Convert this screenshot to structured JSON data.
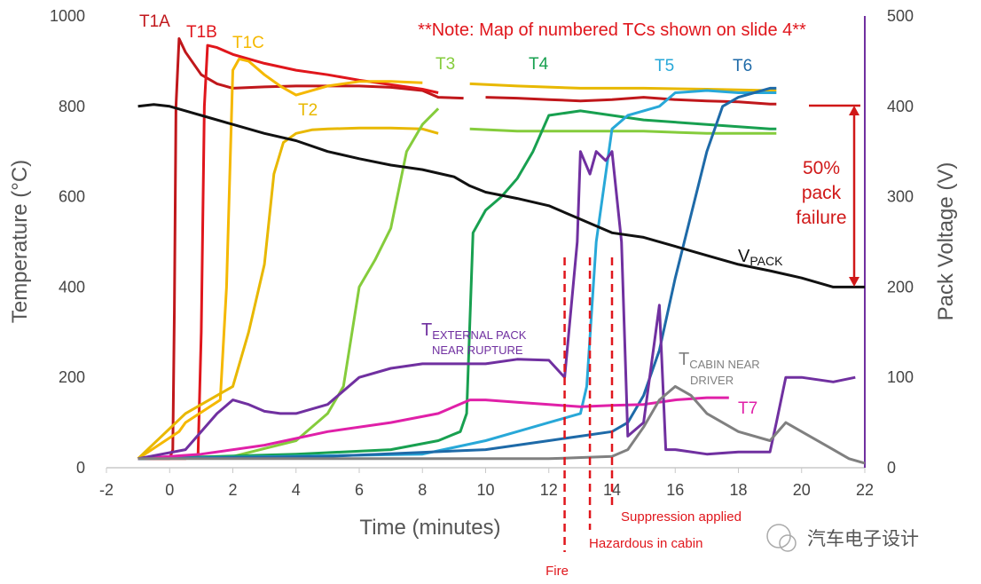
{
  "chart_data": {
    "type": "line",
    "xlabel": "Time (minutes)",
    "ylabel": "Temperature (°C)",
    "y2label": "Pack Voltage (V)",
    "xlim": [
      -2,
      22
    ],
    "ylim": [
      0,
      1000
    ],
    "y2lim": [
      0,
      500
    ],
    "xticks": [
      "-2",
      "0",
      "2",
      "4",
      "6",
      "8",
      "10",
      "12",
      "14",
      "16",
      "18",
      "20",
      "22"
    ],
    "yticks": [
      "0",
      "200",
      "400",
      "600",
      "800",
      "1000"
    ],
    "y2ticks": [
      "0",
      "100",
      "200",
      "300",
      "400",
      "500"
    ],
    "note": "**Note: Map of numbered TCs shown on slide 4**",
    "failure_label": [
      "50%",
      "pack",
      "failure"
    ],
    "events": [
      {
        "label": "Fire",
        "x": 12.5
      },
      {
        "label": "Hazardous in cabin",
        "x": 13.3
      },
      {
        "label": "Suppression applied",
        "x": 14.0
      }
    ],
    "series": [
      {
        "name": "T1A",
        "color": "#c0171b",
        "axis": "left",
        "x": [
          -1,
          0,
          0.1,
          0.15,
          0.2,
          0.3,
          0.5,
          1.0,
          1.5,
          2,
          3,
          4,
          5,
          6,
          7,
          8,
          8.5,
          9.3,
          9.5,
          10,
          11,
          12,
          13,
          14,
          15,
          16,
          17,
          18,
          19,
          19.2
        ],
        "y": [
          20,
          20,
          40,
          350,
          800,
          950,
          920,
          870,
          850,
          840,
          843,
          845,
          845,
          845,
          842,
          835,
          820,
          818,
          null,
          820,
          818,
          815,
          812,
          815,
          820,
          815,
          812,
          810,
          805,
          805
        ]
      },
      {
        "name": "T1B",
        "color": "#e0161c",
        "x": [
          -1,
          0.5,
          0.9,
          1.0,
          1.1,
          1.2,
          1.5,
          2,
          3,
          4,
          5,
          6,
          7,
          8,
          8.5
        ],
        "y": [
          20,
          20,
          30,
          300,
          800,
          935,
          930,
          915,
          895,
          880,
          870,
          858,
          848,
          838,
          830
        ]
      },
      {
        "name": "T1C",
        "color": "#f5b800",
        "x": [
          -1,
          0.3,
          0.5,
          1.6,
          1.8,
          2.0,
          2.2,
          2.5,
          3,
          3.5,
          4,
          5,
          6,
          7,
          8
        ],
        "y": [
          20,
          80,
          100,
          150,
          400,
          880,
          905,
          900,
          870,
          845,
          825,
          845,
          855,
          855,
          852
        ]
      },
      {
        "name": "T2",
        "color": "#e8b800",
        "x": [
          -1,
          0.5,
          1.5,
          2.0,
          2.5,
          3.0,
          3.3,
          3.6,
          4,
          4.5,
          5,
          6,
          7,
          8,
          8.5
        ],
        "y": [
          20,
          120,
          160,
          180,
          300,
          450,
          650,
          720,
          740,
          748,
          750,
          752,
          752,
          750,
          740
        ]
      },
      {
        "name": "T2 (cont.)",
        "color": "#e8b800",
        "x": [
          9.5,
          11,
          13,
          15,
          17,
          19,
          19.2
        ],
        "y": [
          850,
          845,
          840,
          840,
          838,
          835,
          835
        ]
      },
      {
        "name": "T3",
        "color": "#85cc3c",
        "x": [
          -1,
          2,
          4,
          5,
          5.5,
          6,
          6.5,
          7,
          7.5,
          8,
          8.5
        ],
        "y": [
          20,
          25,
          60,
          120,
          180,
          400,
          460,
          530,
          700,
          760,
          795
        ]
      },
      {
        "name": "T3 (cont.)",
        "color": "#85cc3c",
        "x": [
          9.5,
          11,
          13,
          15,
          17,
          19,
          19.2
        ],
        "y": [
          750,
          745,
          745,
          745,
          740,
          740,
          740
        ]
      },
      {
        "name": "T4",
        "color": "#18a050",
        "x": [
          -1,
          4,
          7,
          8.5,
          9.2,
          9.4,
          9.6,
          10,
          10.5,
          11,
          11.5,
          12,
          13,
          14,
          15,
          17,
          19,
          19.2
        ],
        "y": [
          20,
          30,
          40,
          60,
          80,
          120,
          520,
          570,
          600,
          640,
          700,
          780,
          790,
          780,
          770,
          760,
          750,
          750
        ]
      },
      {
        "name": "T5",
        "color": "#28a8d8",
        "x": [
          -1,
          8,
          10,
          11,
          12,
          13,
          13.2,
          13.5,
          14,
          14.5,
          15,
          15.5,
          16,
          17,
          18,
          19,
          19.2
        ],
        "y": [
          20,
          30,
          60,
          80,
          100,
          120,
          180,
          500,
          750,
          780,
          790,
          800,
          830,
          835,
          830,
          830,
          830
        ]
      },
      {
        "name": "T6",
        "color": "#1e6aa8",
        "x": [
          -1,
          5,
          10,
          12,
          14,
          14.5,
          15,
          15.5,
          16,
          16.5,
          17,
          17.5,
          18,
          18.5,
          19,
          19.2
        ],
        "y": [
          20,
          25,
          40,
          60,
          80,
          100,
          160,
          260,
          420,
          560,
          700,
          800,
          820,
          830,
          840,
          840
        ]
      },
      {
        "name": "T7",
        "color": "#e020a8",
        "x": [
          -1,
          1,
          3,
          5,
          7,
          8.5,
          9.5,
          10,
          11,
          12,
          13,
          14,
          15,
          16,
          17,
          17.7
        ],
        "y": [
          20,
          30,
          50,
          80,
          100,
          120,
          150,
          150,
          145,
          140,
          135,
          138,
          140,
          150,
          155,
          155
        ]
      },
      {
        "name": "T EXTERNAL PACK NEAR RUPTURE",
        "color": "#7030a0",
        "x": [
          -1,
          0.5,
          1,
          1.5,
          2,
          2.5,
          3,
          3.5,
          4,
          5,
          6,
          7,
          8,
          9,
          10,
          11,
          12,
          12.5,
          12.7,
          12.9,
          13,
          13.3,
          13.5,
          13.8,
          14,
          14.3,
          14.5,
          15,
          15.5,
          15.7,
          16,
          17,
          18,
          19,
          19.2,
          19.5,
          20,
          21,
          21.7
        ],
        "y": [
          20,
          40,
          80,
          120,
          150,
          140,
          125,
          120,
          120,
          140,
          200,
          220,
          230,
          230,
          230,
          240,
          238,
          200,
          350,
          500,
          700,
          650,
          700,
          680,
          700,
          500,
          70,
          100,
          360,
          40,
          40,
          30,
          35,
          35,
          100,
          200,
          200,
          190,
          200
        ]
      },
      {
        "name": "T CABIN NEAR DRIVER",
        "color": "#808080",
        "x": [
          -1,
          5,
          10,
          12,
          14,
          14.5,
          15,
          15.5,
          16,
          16.5,
          17,
          18,
          19,
          19.5,
          20,
          21,
          21.5,
          22
        ],
        "y": [
          20,
          20,
          20,
          20,
          25,
          40,
          90,
          150,
          180,
          160,
          120,
          80,
          60,
          100,
          80,
          40,
          20,
          10
        ]
      },
      {
        "name": "VPACK",
        "color": "#111111",
        "axis": "right",
        "x": [
          -1,
          -0.5,
          0,
          1,
          2,
          3,
          4,
          5,
          6,
          7,
          8,
          9,
          9.5,
          10,
          11,
          12,
          13,
          14,
          15,
          16,
          17,
          18,
          19,
          20,
          21,
          22
        ],
        "y": [
          400,
          402,
          400,
          390,
          380,
          370,
          362,
          350,
          342,
          335,
          330,
          322,
          312,
          305,
          298,
          290,
          275,
          260,
          255,
          245,
          235,
          225,
          218,
          210,
          200,
          200
        ]
      }
    ]
  },
  "labels": {
    "t1a": "T1A",
    "t1b": "T1B",
    "t1c": "T1C",
    "t2": "T2",
    "t3": "T3",
    "t4": "T4",
    "t5": "T5",
    "t6": "T6",
    "t7": "T7",
    "vpack_main": "V",
    "vpack_sub": "PACK",
    "text_main": "T",
    "text_sub1": "EXTERNAL PACK",
    "text_sub2": "NEAR RUPTURE",
    "tcab_main": "T",
    "tcab_sub1": "CABIN NEAR",
    "tcab_sub2": "DRIVER"
  },
  "watermark": "汽车电子设计"
}
